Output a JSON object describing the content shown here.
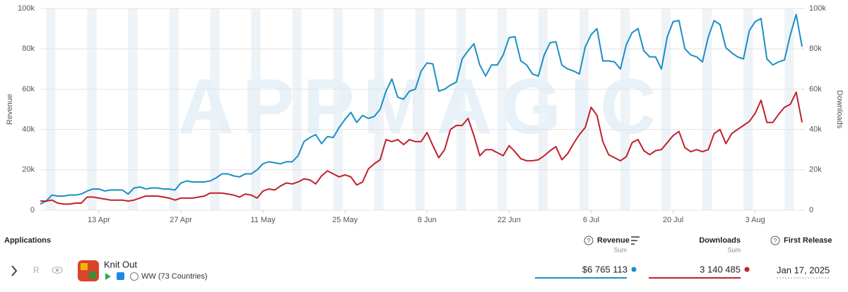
{
  "chart_data": {
    "type": "line",
    "watermark": "APPMAGIC",
    "categories": [
      "3 Apr",
      "4 Apr",
      "5 Apr",
      "6 Apr",
      "7 Apr",
      "8 Apr",
      "9 Apr",
      "10 Apr",
      "11 Apr",
      "12 Apr",
      "13 Apr",
      "14 Apr",
      "15 Apr",
      "16 Apr",
      "17 Apr",
      "18 Apr",
      "19 Apr",
      "20 Apr",
      "21 Apr",
      "22 Apr",
      "23 Apr",
      "24 Apr",
      "25 Apr",
      "26 Apr",
      "27 Apr",
      "28 Apr",
      "29 Apr",
      "30 Apr",
      "1 May",
      "2 May",
      "3 May",
      "4 May",
      "5 May",
      "6 May",
      "7 May",
      "8 May",
      "9 May",
      "10 May",
      "11 May",
      "12 May",
      "13 May",
      "14 May",
      "15 May",
      "16 May",
      "17 May",
      "18 May",
      "19 May",
      "20 May",
      "21 May",
      "22 May",
      "23 May",
      "24 May",
      "25 May",
      "26 May",
      "27 May",
      "28 May",
      "29 May",
      "30 May",
      "31 May",
      "1 Jun",
      "2 Jun",
      "3 Jun",
      "4 Jun",
      "5 Jun",
      "6 Jun",
      "7 Jun",
      "8 Jun",
      "9 Jun",
      "10 Jun",
      "11 Jun",
      "12 Jun",
      "13 Jun",
      "14 Jun",
      "15 Jun",
      "16 Jun",
      "17 Jun",
      "18 Jun",
      "19 Jun",
      "20 Jun",
      "21 Jun",
      "22 Jun",
      "23 Jun",
      "24 Jun",
      "25 Jun",
      "26 Jun",
      "27 Jun",
      "28 Jun",
      "29 Jun",
      "30 Jun",
      "1 Jul",
      "2 Jul",
      "3 Jul",
      "4 Jul",
      "5 Jul",
      "6 Jul",
      "7 Jul",
      "8 Jul",
      "9 Jul",
      "10 Jul",
      "11 Jul",
      "12 Jul",
      "13 Jul",
      "14 Jul",
      "15 Jul",
      "16 Jul",
      "17 Jul",
      "18 Jul",
      "19 Jul",
      "20 Jul",
      "21 Jul",
      "22 Jul",
      "23 Jul",
      "24 Jul",
      "25 Jul",
      "26 Jul",
      "27 Jul",
      "28 Jul",
      "29 Jul",
      "30 Jul",
      "31 Jul",
      "1 Aug",
      "2 Aug",
      "3 Aug",
      "4 Aug",
      "5 Aug",
      "6 Aug",
      "7 Aug",
      "8 Aug",
      "9 Aug",
      "10 Aug",
      "11 Aug"
    ],
    "xticks": [
      "13 Apr",
      "27 Apr",
      "11 May",
      "25 May",
      "8 Jun",
      "22 Jun",
      "6 Jul",
      "20 Jul",
      "3 Aug"
    ],
    "series": [
      {
        "name": "Revenue",
        "color": "#1a8fc4",
        "values": [
          3000,
          4500,
          7500,
          7000,
          7000,
          7500,
          7500,
          8000,
          9500,
          10500,
          10500,
          9500,
          10000,
          10000,
          10000,
          8000,
          11000,
          11500,
          10500,
          11000,
          11000,
          10500,
          10500,
          10000,
          13500,
          14500,
          14000,
          14000,
          14000,
          14500,
          16000,
          18000,
          18000,
          17000,
          16500,
          18000,
          18000,
          20000,
          23000,
          24000,
          23500,
          23000,
          24000,
          24000,
          27000,
          34000,
          36000,
          37500,
          33000,
          36500,
          36000,
          41000,
          45000,
          48500,
          43500,
          47000,
          45500,
          46500,
          50000,
          59000,
          65000,
          56000,
          55000,
          59000,
          60000,
          69000,
          73000,
          72500,
          59000,
          60000,
          62000,
          63500,
          75000,
          79000,
          82500,
          72000,
          66500,
          72000,
          72000,
          77000,
          85500,
          86000,
          74000,
          72000,
          67500,
          66500,
          77000,
          83000,
          83500,
          72000,
          70000,
          69000,
          67500,
          81000,
          87000,
          90000,
          74000,
          74000,
          73500,
          70000,
          82000,
          88000,
          90000,
          79000,
          76000,
          76000,
          70000,
          86000,
          93500,
          94000,
          80000,
          77000,
          76000,
          73500,
          86000,
          94000,
          92000,
          80500,
          78000,
          76000,
          75000,
          89000,
          93500,
          95000,
          75000,
          72000,
          73500,
          74500,
          87000,
          97000,
          81000
        ]
      },
      {
        "name": "Downloads",
        "color": "#c0202a",
        "axis": "y2",
        "values": [
          4500,
          4500,
          5000,
          3500,
          3000,
          3000,
          3500,
          3500,
          6500,
          6500,
          6000,
          5500,
          5000,
          5000,
          5000,
          4500,
          5000,
          6000,
          7000,
          7000,
          7000,
          6500,
          6000,
          5000,
          6000,
          6000,
          6000,
          6500,
          7000,
          8500,
          8500,
          8500,
          8000,
          7500,
          6500,
          8000,
          7500,
          6000,
          9500,
          10500,
          10000,
          12000,
          13500,
          13000,
          14000,
          15500,
          15000,
          13000,
          17000,
          19500,
          18000,
          16500,
          17500,
          16500,
          12500,
          14000,
          20500,
          23000,
          25000,
          35000,
          34000,
          35000,
          32500,
          35000,
          34000,
          34000,
          38500,
          32000,
          26000,
          30000,
          40000,
          42000,
          42000,
          45500,
          37000,
          27000,
          30000,
          30000,
          28500,
          27000,
          32000,
          29000,
          25500,
          24500,
          24500,
          25000,
          27000,
          29500,
          31500,
          25000,
          28000,
          33000,
          37500,
          41000,
          51000,
          47000,
          34000,
          27500,
          26000,
          24500,
          26500,
          33500,
          35000,
          29500,
          27500,
          29500,
          30000,
          33500,
          37000,
          39000,
          31000,
          29000,
          30000,
          29000,
          30000,
          38000,
          40000,
          33000,
          38000,
          40000,
          42000,
          44000,
          48000,
          54500,
          43500,
          43500,
          47500,
          51000,
          52500,
          58500,
          43500
        ]
      }
    ],
    "ylim": [
      0,
      100000
    ],
    "yticks": [
      0,
      {
        "value": 20000,
        "label": "20k"
      },
      {
        "value": 40000,
        "label": "40k"
      },
      {
        "value": 60000,
        "label": "60k"
      },
      {
        "value": 80000,
        "label": "80k"
      },
      {
        "value": 100000,
        "label": "100k"
      }
    ],
    "y2lim": [
      0,
      100000
    ],
    "y2ticks": [
      0,
      {
        "value": 20000,
        "label": "20k"
      },
      {
        "value": 40000,
        "label": "40k"
      },
      {
        "value": 60000,
        "label": "60k"
      },
      {
        "value": 80000,
        "label": "80k"
      },
      {
        "value": 100000,
        "label": "100k"
      }
    ],
    "grid": true
  },
  "table": {
    "headers": {
      "applications": "Applications",
      "revenue": "Revenue",
      "revenue_agg": "Sum",
      "downloads": "Downloads",
      "downloads_agg": "Sum",
      "first_release": "First Release"
    },
    "row": {
      "badge": "R",
      "name": "Knit Out",
      "region": "WW (73 Countries)",
      "revenue": "$6 765 113",
      "downloads": "3 140 485",
      "first_release": "Jan 17, 2025"
    }
  }
}
